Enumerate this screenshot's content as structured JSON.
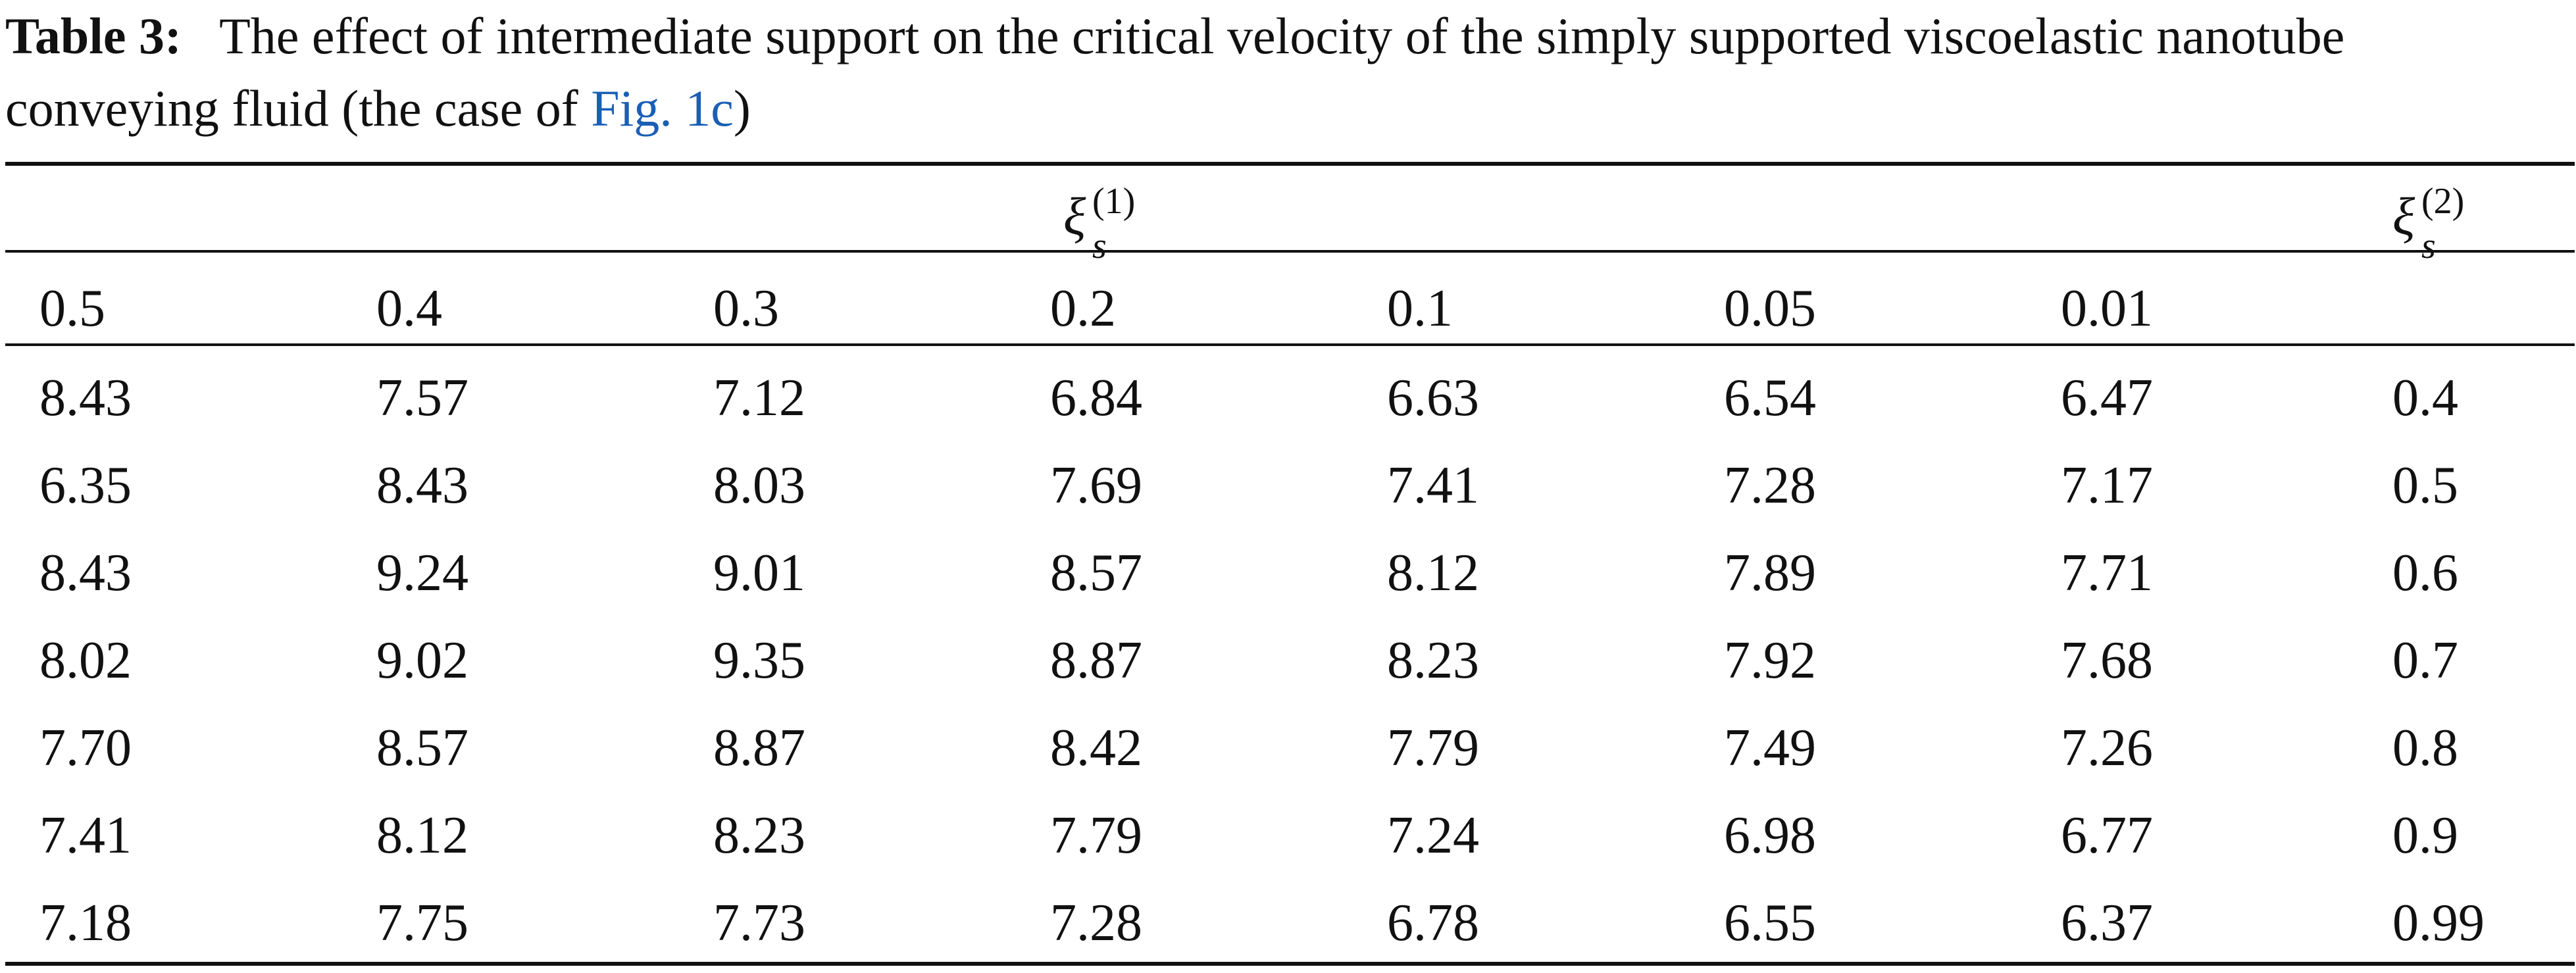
{
  "caption": {
    "label": "Table 3:",
    "text_line1": "The effect of intermediate support on the critical velocity of the simply supported viscoelastic nanotube",
    "text_line2_before": "conveying fluid (the case of ",
    "link": "Fig. 1c",
    "text_line2_after": ")"
  },
  "header": {
    "xi1": {
      "symbol": "ξ",
      "sub": "s",
      "sup": "(1)"
    },
    "xi2": {
      "symbol": "ξ",
      "sub": "s",
      "sup": "(2)"
    },
    "columns": [
      "0.5",
      "0.4",
      "0.3",
      "0.2",
      "0.1",
      "0.05",
      "0.01"
    ]
  },
  "rows": [
    {
      "values": [
        "8.43",
        "7.57",
        "7.12",
        "6.84",
        "6.63",
        "6.54",
        "6.47"
      ],
      "xi2": "0.4"
    },
    {
      "values": [
        "6.35",
        "8.43",
        "8.03",
        "7.69",
        "7.41",
        "7.28",
        "7.17"
      ],
      "xi2": "0.5"
    },
    {
      "values": [
        "8.43",
        "9.24",
        "9.01",
        "8.57",
        "8.12",
        "7.89",
        "7.71"
      ],
      "xi2": "0.6"
    },
    {
      "values": [
        "8.02",
        "9.02",
        "9.35",
        "8.87",
        "8.23",
        "7.92",
        "7.68"
      ],
      "xi2": "0.7"
    },
    {
      "values": [
        "7.70",
        "8.57",
        "8.87",
        "8.42",
        "7.79",
        "7.49",
        "7.26"
      ],
      "xi2": "0.8"
    },
    {
      "values": [
        "7.41",
        "8.12",
        "8.23",
        "7.79",
        "7.24",
        "6.98",
        "6.77"
      ],
      "xi2": "0.9"
    },
    {
      "values": [
        "7.18",
        "7.75",
        "7.73",
        "7.28",
        "6.78",
        "6.55",
        "6.37"
      ],
      "xi2": "0.99"
    }
  ]
}
